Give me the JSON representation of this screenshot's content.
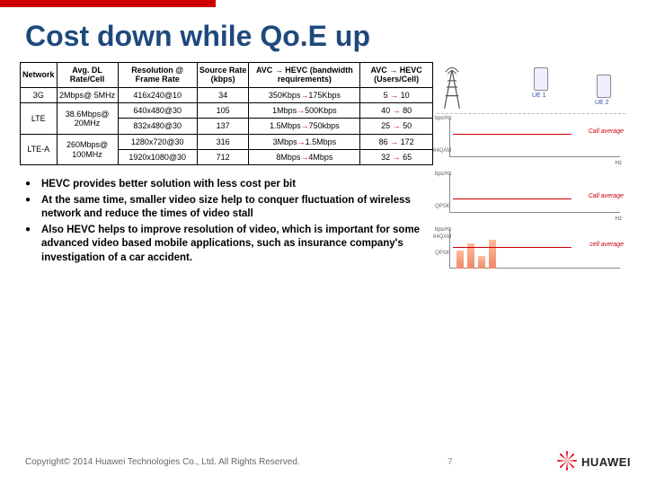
{
  "title": {
    "text": "Cost down  while Qo.E up",
    "color": "#1f497d",
    "font_size": 32
  },
  "accent_bar_color": "#c00000",
  "table": {
    "font_size": 9,
    "border_color": "#000000",
    "arrow_color_text": "#c00000",
    "columns": [
      "Network",
      "Avg. DL Rate/Cell",
      "Resolution @ Frame Rate",
      "Source Rate (kbps)",
      "AVC → HEVC (bandwidth requirements)",
      "AVC → HEVC (Users/Cell)"
    ],
    "rows": [
      {
        "network": "3G",
        "rate": "2Mbps@ 5MHz",
        "res": "416x240@10",
        "src": "34",
        "bw_from": "350Kbps",
        "bw_to": "175Kbps",
        "u_from": "5",
        "u_to": "10"
      },
      {
        "network": "LTE",
        "rate": "38.6Mbps@ 20MHz",
        "res": "640x480@30",
        "src": "105",
        "bw_from": "1Mbps",
        "bw_to": "500Kbps",
        "u_from": "40",
        "u_to": "80"
      },
      {
        "network": "",
        "rate": "",
        "res": "832x480@30",
        "src": "137",
        "bw_from": "1.5Mbps",
        "bw_to": "750kbps",
        "u_from": "25",
        "u_to": "50"
      },
      {
        "network": "LTE-A",
        "rate": "260Mbps@ 100MHz",
        "res": "1280x720@30",
        "src": "316",
        "bw_from": "3Mbps",
        "bw_to": "1.5Mbps",
        "u_from": "86",
        "u_to": "172"
      },
      {
        "network": "",
        "rate": "",
        "res": "1920x1080@30",
        "src": "712",
        "bw_from": "8Mbps",
        "bw_to": "4Mbps",
        "u_from": "32",
        "u_to": "65"
      }
    ]
  },
  "bullets": {
    "font_size": 11.5,
    "items": [
      "HEVC provides better solution with less cost per bit",
      "At the same time, smaller video size help to conquer fluctuation of wireless network and reduce the times of video stall",
      "Also HEVC helps to improve resolution of video, which is important for some advanced video based mobile applications, such as insurance company's investigation of a car accident."
    ]
  },
  "right_panel": {
    "ue1_label": "UE 1",
    "ue2_label": "UE 2",
    "chart1": {
      "y_label": "bps/Hz",
      "x_label": "Hz",
      "callavg_label": "Call average",
      "callavg_color": "#c00000",
      "qam_label": "64QAM"
    },
    "chart2": {
      "y_label": "bps/Hz",
      "x_label": "Hz",
      "callavg_label": "Call average",
      "callavg_color": "#c00000",
      "qam_labels": [
        "QPSK"
      ]
    },
    "chart3": {
      "y_label": "bps/Hz",
      "x_label": "",
      "callavg_label": "cell average",
      "callavg_color": "#c00000",
      "qam_labels": [
        "64QAM",
        "QPSK"
      ],
      "bar_heights": [
        20,
        28,
        14,
        32
      ]
    }
  },
  "footer": {
    "copyright": "Copyright© 2014 Huawei Technologies Co., Ltd. All Rights Reserved.",
    "page_number": "7",
    "logo_text": "HUAWEI",
    "logo_color": "#e60012"
  }
}
